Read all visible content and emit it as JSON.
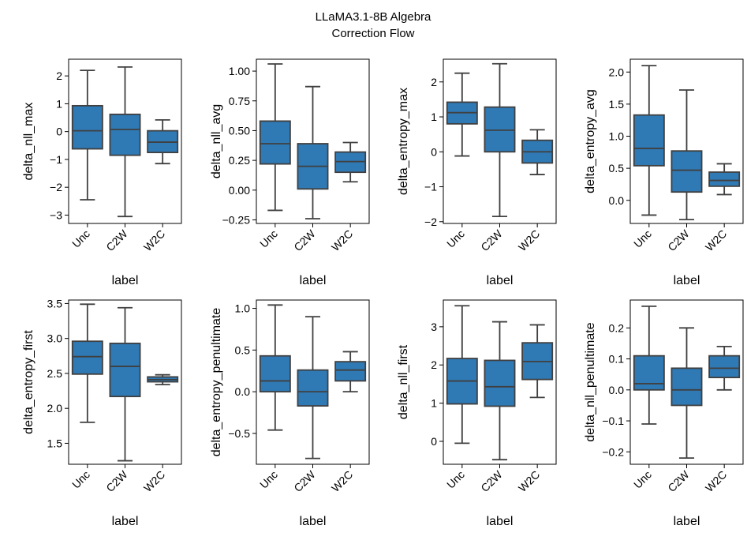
{
  "figure": {
    "title_line1": "LLaMA3.1-8B Algebra",
    "title_line2": "Correction Flow"
  },
  "chart_data": [
    {
      "type": "box",
      "ylabel": "delta_nll_max",
      "xlabel": "label",
      "categories": [
        "Unc",
        "C2W",
        "W2C"
      ],
      "ylim": [
        -3.3,
        2.6
      ],
      "yticks": [
        -3,
        -2,
        -1,
        0,
        1,
        2
      ],
      "boxes": [
        {
          "whislo": -2.45,
          "q1": -0.62,
          "med": 0.03,
          "q3": 0.93,
          "whishi": 2.2
        },
        {
          "whislo": -3.05,
          "q1": -0.85,
          "med": 0.08,
          "q3": 0.62,
          "whishi": 2.32
        },
        {
          "whislo": -1.15,
          "q1": -0.75,
          "med": -0.38,
          "q3": 0.03,
          "whishi": 0.42
        }
      ]
    },
    {
      "type": "box",
      "ylabel": "delta_nll_avg",
      "xlabel": "label",
      "categories": [
        "Unc",
        "C2W",
        "W2C"
      ],
      "ylim": [
        -0.28,
        1.1
      ],
      "yticks": [
        -0.25,
        0.0,
        0.25,
        0.5,
        0.75,
        1.0
      ],
      "ytick_labels": [
        "−0.25",
        "0.00",
        "0.25",
        "0.50",
        "0.75",
        "1.00"
      ],
      "boxes": [
        {
          "whislo": -0.17,
          "q1": 0.22,
          "med": 0.39,
          "q3": 0.58,
          "whishi": 1.06
        },
        {
          "whislo": -0.24,
          "q1": 0.01,
          "med": 0.2,
          "q3": 0.39,
          "whishi": 0.87
        },
        {
          "whislo": 0.07,
          "q1": 0.15,
          "med": 0.24,
          "q3": 0.32,
          "whishi": 0.4
        }
      ]
    },
    {
      "type": "box",
      "ylabel": "delta_entropy_max",
      "xlabel": "label",
      "categories": [
        "Unc",
        "C2W",
        "W2C"
      ],
      "ylim": [
        -2.05,
        2.65
      ],
      "yticks": [
        -2,
        -1,
        0,
        1,
        2
      ],
      "boxes": [
        {
          "whislo": -0.12,
          "q1": 0.8,
          "med": 1.12,
          "q3": 1.42,
          "whishi": 2.25
        },
        {
          "whislo": -1.85,
          "q1": 0.0,
          "med": 0.62,
          "q3": 1.28,
          "whishi": 2.52
        },
        {
          "whislo": -0.65,
          "q1": -0.32,
          "med": 0.0,
          "q3": 0.33,
          "whishi": 0.63
        }
      ]
    },
    {
      "type": "box",
      "ylabel": "delta_entropy_avg",
      "xlabel": "label",
      "categories": [
        "Unc",
        "C2W",
        "W2C"
      ],
      "ylim": [
        -0.36,
        2.2
      ],
      "yticks": [
        0.0,
        0.5,
        1.0,
        1.5,
        2.0
      ],
      "ytick_labels": [
        "0.0",
        "0.5",
        "1.0",
        "1.5",
        "2.0"
      ],
      "boxes": [
        {
          "whislo": -0.23,
          "q1": 0.54,
          "med": 0.81,
          "q3": 1.33,
          "whishi": 2.1
        },
        {
          "whislo": -0.3,
          "q1": 0.13,
          "med": 0.47,
          "q3": 0.77,
          "whishi": 1.72
        },
        {
          "whislo": 0.09,
          "q1": 0.22,
          "med": 0.31,
          "q3": 0.44,
          "whishi": 0.57
        }
      ]
    },
    {
      "type": "box",
      "ylabel": "delta_entropy_first",
      "xlabel": "label",
      "categories": [
        "Unc",
        "C2W",
        "W2C"
      ],
      "ylim": [
        1.2,
        3.55
      ],
      "yticks": [
        1.5,
        2.0,
        2.5,
        3.0,
        3.5
      ],
      "ytick_labels": [
        "1.5",
        "2.0",
        "2.5",
        "3.0",
        "3.5"
      ],
      "boxes": [
        {
          "whislo": 1.8,
          "q1": 2.49,
          "med": 2.74,
          "q3": 2.96,
          "whishi": 3.49
        },
        {
          "whislo": 1.25,
          "q1": 2.17,
          "med": 2.6,
          "q3": 2.93,
          "whishi": 3.44
        },
        {
          "whislo": 2.34,
          "q1": 2.38,
          "med": 2.41,
          "q3": 2.45,
          "whishi": 2.48
        }
      ]
    },
    {
      "type": "box",
      "ylabel": "delta_entropy_penultimate",
      "xlabel": "label",
      "categories": [
        "Unc",
        "C2W",
        "W2C"
      ],
      "ylim": [
        -0.87,
        1.1
      ],
      "yticks": [
        -0.5,
        0.0,
        0.5,
        1.0
      ],
      "ytick_labels": [
        "−0.5",
        "0.0",
        "0.5",
        "1.0"
      ],
      "boxes": [
        {
          "whislo": -0.46,
          "q1": 0.0,
          "med": 0.13,
          "q3": 0.43,
          "whishi": 1.04
        },
        {
          "whislo": -0.8,
          "q1": -0.17,
          "med": 0.0,
          "q3": 0.26,
          "whishi": 0.9
        },
        {
          "whislo": 0.0,
          "q1": 0.13,
          "med": 0.26,
          "q3": 0.36,
          "whishi": 0.48
        }
      ]
    },
    {
      "type": "box",
      "ylabel": "delta_nll_first",
      "xlabel": "label",
      "categories": [
        "Unc",
        "C2W",
        "W2C"
      ],
      "ylim": [
        -0.6,
        3.7
      ],
      "yticks": [
        0,
        1,
        2,
        3
      ],
      "boxes": [
        {
          "whislo": -0.05,
          "q1": 0.98,
          "med": 1.58,
          "q3": 2.17,
          "whishi": 3.55
        },
        {
          "whislo": -0.48,
          "q1": 0.92,
          "med": 1.43,
          "q3": 2.12,
          "whishi": 3.13
        },
        {
          "whislo": 1.15,
          "q1": 1.62,
          "med": 2.09,
          "q3": 2.58,
          "whishi": 3.05
        }
      ]
    },
    {
      "type": "box",
      "ylabel": "delta_nll_penultimate",
      "xlabel": "label",
      "categories": [
        "Unc",
        "C2W",
        "W2C"
      ],
      "ylim": [
        -0.24,
        0.29
      ],
      "yticks": [
        -0.2,
        -0.1,
        0.0,
        0.1,
        0.2
      ],
      "ytick_labels": [
        "−0.2",
        "−0.1",
        "0.0",
        "0.1",
        "0.2"
      ],
      "boxes": [
        {
          "whislo": -0.11,
          "q1": 0.0,
          "med": 0.02,
          "q3": 0.11,
          "whishi": 0.27
        },
        {
          "whislo": -0.22,
          "q1": -0.05,
          "med": 0.0,
          "q3": 0.07,
          "whishi": 0.2
        },
        {
          "whislo": 0.0,
          "q1": 0.04,
          "med": 0.07,
          "q3": 0.11,
          "whishi": 0.14
        }
      ]
    }
  ],
  "style": {
    "box_fill": "#2f79b4",
    "line_color": "#404040",
    "axis_color": "#000000"
  }
}
